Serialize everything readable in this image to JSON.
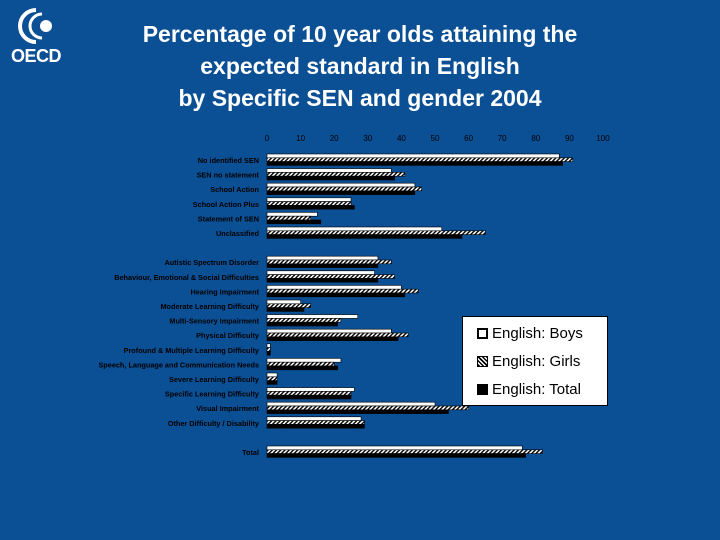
{
  "logo": {
    "text": "OECD"
  },
  "title": {
    "line1": "Percentage of 10 year olds attaining the",
    "line2": "expected standard in English",
    "line3": "by Specific SEN and gender 2004"
  },
  "colors": {
    "background": "#0b4f94",
    "boys": "#ffffff",
    "girls": "hatched",
    "total": "#000000"
  },
  "chart_data": {
    "type": "bar",
    "orientation": "horizontal",
    "xlim": [
      0,
      100
    ],
    "x_ticks": [
      "0",
      "10",
      "20",
      "30",
      "40",
      "50",
      "60",
      "70",
      "80",
      "90",
      "100"
    ],
    "grid": false,
    "legend_position": "right",
    "categories": [
      "No identified SEN",
      "SEN no statement",
      "School Action",
      "School Action Plus",
      "Statement of SEN",
      "Unclassified",
      "",
      "Autistic Spectrum Disorder",
      "Behaviour, Emotional & Social Difficulties",
      "Hearing Impairment",
      "Moderate Learning Difficulty",
      "Multi-Sensory Impairment",
      "Physical Difficulty",
      "Profound & Multiple Learning Difficulty",
      "Speech, Language and Communication Needs",
      "Severe Learning Difficulty",
      "Specific Learning Difficulty",
      "Visual Impairment",
      "Other Difficulty / Disability",
      "",
      "Total"
    ],
    "series": [
      {
        "name": "English: Boys",
        "values": [
          87,
          37,
          44,
          25,
          15,
          52,
          null,
          33,
          32,
          40,
          10,
          27,
          37,
          1,
          22,
          3,
          26,
          50,
          28,
          null,
          76
        ]
      },
      {
        "name": "English: Girls",
        "values": [
          91,
          41,
          46,
          25,
          13,
          65,
          null,
          37,
          38,
          45,
          13,
          22,
          42,
          1,
          20,
          3,
          25,
          60,
          29,
          null,
          82
        ]
      },
      {
        "name": "English: Total",
        "values": [
          88,
          38,
          44,
          26,
          16,
          58,
          null,
          33,
          33,
          41,
          11,
          21,
          39,
          1,
          21,
          3,
          25,
          54,
          29,
          null,
          77
        ]
      }
    ]
  },
  "legend": {
    "boys": "English: Boys",
    "girls": "English: Girls",
    "total": "English: Total"
  }
}
